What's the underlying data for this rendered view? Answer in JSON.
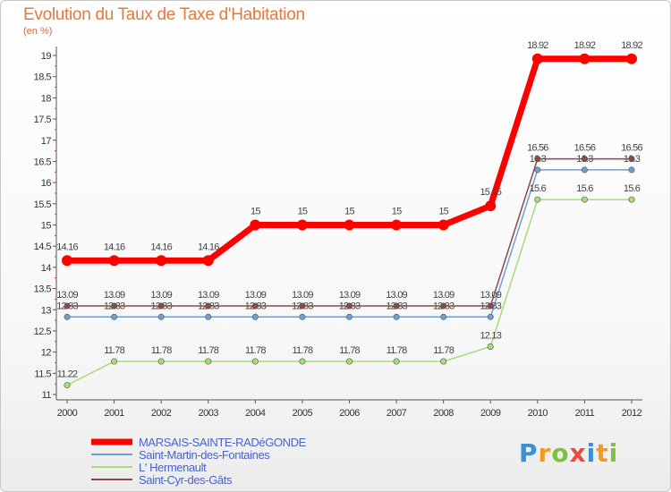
{
  "title": "Evolution du Taux de Taxe d'Habitation",
  "unit_label": "(en %)",
  "logo": {
    "letters": [
      "P",
      "r",
      "o",
      "x",
      "i",
      "t",
      "i"
    ],
    "colors": [
      "#3a8fd6",
      "#f39a1e",
      "#7cc242",
      "#e84c3d",
      "#3a8fd6",
      "#f39a1e",
      "#7cc242"
    ]
  },
  "chart_data": {
    "type": "line",
    "title": "Evolution du Taux de Taxe d'Habitation",
    "ylabel": "(en %)",
    "xlabel": "",
    "x": [
      "2000",
      "2001",
      "2002",
      "2003",
      "2004",
      "2005",
      "2006",
      "2007",
      "2008",
      "2009",
      "2010",
      "2011",
      "2012"
    ],
    "ylim": [
      11,
      19
    ],
    "yticks": [
      "11",
      "11.5",
      "12",
      "12.5",
      "13",
      "13.5",
      "14",
      "14.5",
      "15",
      "15.5",
      "16",
      "16.5",
      "17",
      "17.5",
      "18",
      "18.5",
      "19"
    ],
    "legend_position": "bottom-left",
    "grid": false,
    "series": [
      {
        "name": "MARSAIS-SAINTE-RADéGONDE",
        "color": "#ff0000",
        "emphasis": true,
        "values": [
          14.16,
          14.16,
          14.16,
          14.16,
          15,
          15,
          15,
          15,
          15,
          15.45,
          18.92,
          18.92,
          18.92
        ],
        "labels": [
          "14.16",
          "14.16",
          "14.16",
          "14.16",
          "15",
          "15",
          "15",
          "15",
          "15",
          "15.45",
          "18.92",
          "18.92",
          "18.92"
        ]
      },
      {
        "name": "Saint-Martin-des-Fontaines",
        "color": "#6f9fd0",
        "emphasis": false,
        "values": [
          12.83,
          12.83,
          12.83,
          12.83,
          12.83,
          12.83,
          12.83,
          12.83,
          12.83,
          12.83,
          16.3,
          16.3,
          16.3
        ],
        "labels": [
          "12.83",
          "12.83",
          "12.83",
          "12.83",
          "12.83",
          "12.83",
          "12.83",
          "12.83",
          "12.83",
          "12.83",
          "16.3",
          "16.3",
          "16.3"
        ]
      },
      {
        "name": "L' Hermenault",
        "color": "#a6dc7a",
        "emphasis": false,
        "values": [
          11.22,
          11.78,
          11.78,
          11.78,
          11.78,
          11.78,
          11.78,
          11.78,
          11.78,
          12.13,
          15.6,
          15.6,
          15.6
        ],
        "labels": [
          "11.22",
          "11.78",
          "11.78",
          "11.78",
          "11.78",
          "11.78",
          "11.78",
          "11.78",
          "11.78",
          "12.13",
          "15.6",
          "15.6",
          "15.6"
        ]
      },
      {
        "name": "Saint-Cyr-des-Gâts",
        "color": "#8b4a4a",
        "emphasis": false,
        "values": [
          13.09,
          13.09,
          13.09,
          13.09,
          13.09,
          13.09,
          13.09,
          13.09,
          13.09,
          13.09,
          16.56,
          16.56,
          16.56
        ],
        "labels": [
          "13.09",
          "13.09",
          "13.09",
          "13.09",
          "13.09",
          "13.09",
          "13.09",
          "13.09",
          "13.09",
          "13.09",
          "16.56",
          "16.56",
          "16.56"
        ]
      }
    ]
  }
}
